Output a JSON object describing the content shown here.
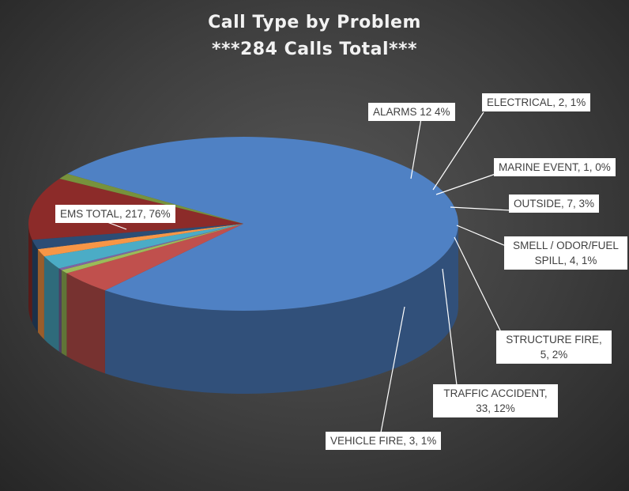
{
  "chart_data": {
    "type": "pie",
    "title": "Call Type by Problem",
    "subtitle": "***284 Calls Total***",
    "slices": [
      {
        "category": "EMS TOTAL",
        "value": 217,
        "percent": "76%",
        "label": "EMS TOTAL, 217, 76%",
        "color": "#4f81c4"
      },
      {
        "category": "ALARMS",
        "value": 12,
        "percent": "4%",
        "label": "ALARMS 12 4%",
        "color": "#c0504d"
      },
      {
        "category": "ELECTRICAL",
        "value": 2,
        "percent": "1%",
        "label": "ELECTRICAL, 2, 1%",
        "color": "#9bbb59"
      },
      {
        "category": "MARINE EVENT",
        "value": 1,
        "percent": "0%",
        "label": "MARINE EVENT, 1, 0%",
        "color": "#8064a2"
      },
      {
        "category": "OUTSIDE",
        "value": 7,
        "percent": "3%",
        "label": "OUTSIDE, 7, 3%",
        "color": "#4bacc6"
      },
      {
        "category": "SMELL / ODOR/FUEL SPILL",
        "value": 4,
        "percent": "1%",
        "label": "SMELL / ODOR/FUEL SPILL, 4, 1%",
        "color": "#f79646"
      },
      {
        "category": "STRUCTURE FIRE",
        "value": 5,
        "percent": "2%",
        "label": "STRUCTURE FIRE, 5, 2%",
        "color": "#2c4d75"
      },
      {
        "category": "TRAFFIC ACCIDENT",
        "value": 33,
        "percent": "12%",
        "label": "TRAFFIC ACCIDENT, 33, 12%",
        "color": "#8c2b29"
      },
      {
        "category": "VEHICLE FIRE",
        "value": 3,
        "percent": "1%",
        "label": "VEHICLE FIRE, 3, 1%",
        "color": "#77923c"
      }
    ],
    "total": 284,
    "style": "3d-pie"
  }
}
